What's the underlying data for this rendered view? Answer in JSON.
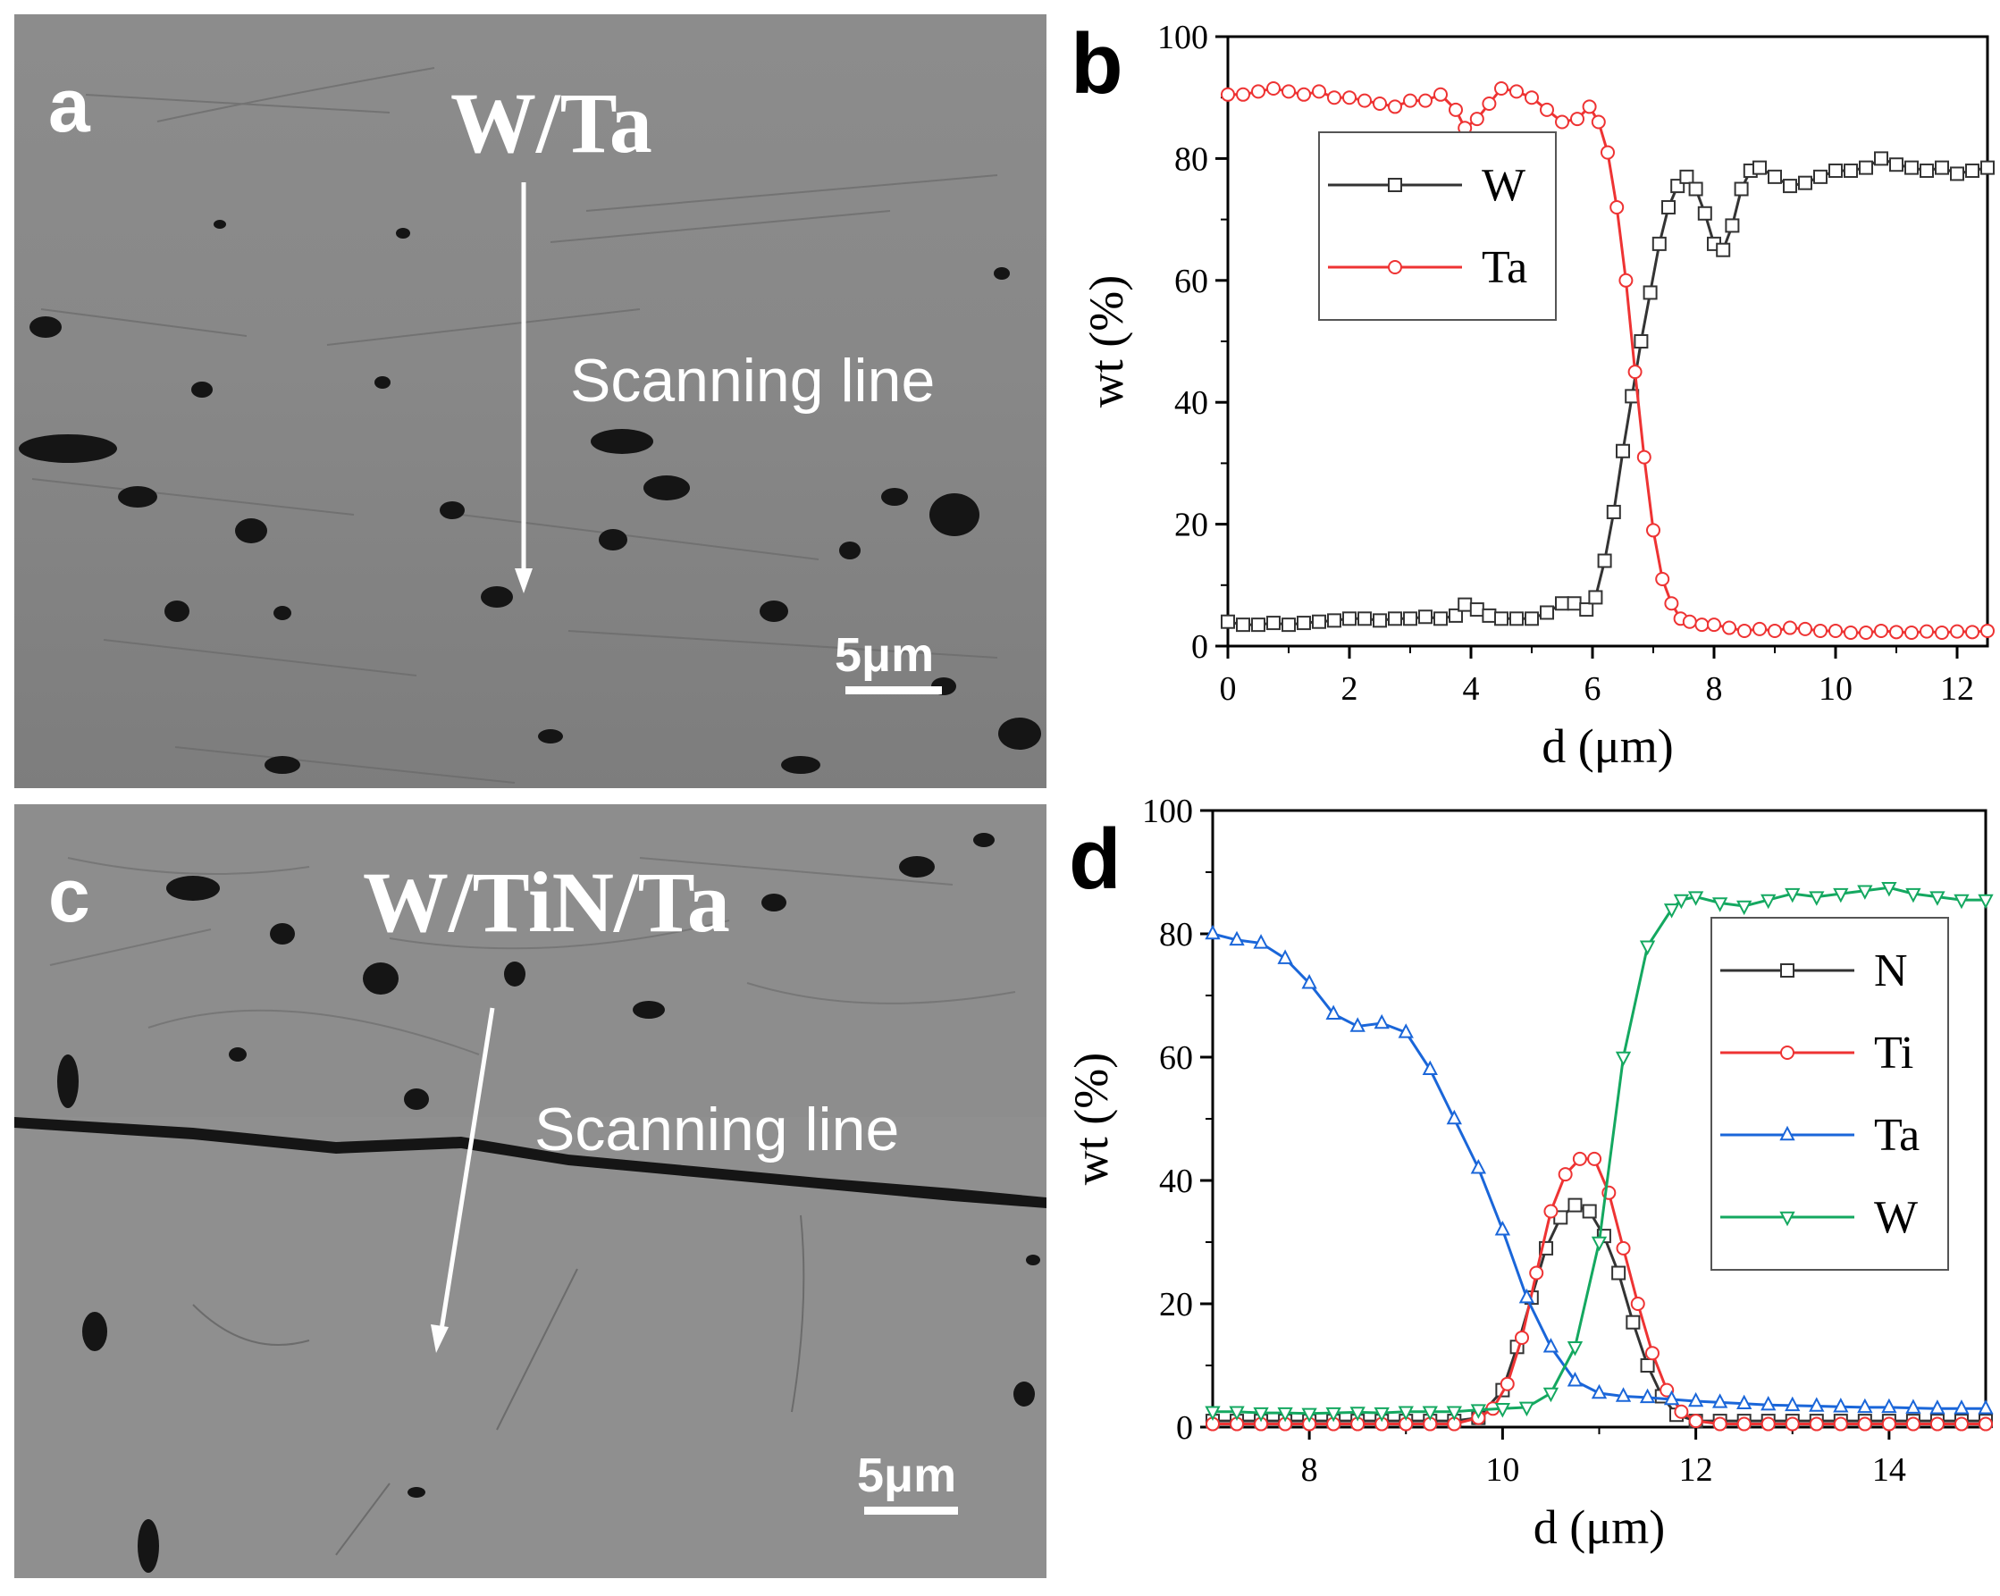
{
  "panels": {
    "a": {
      "letter": "a",
      "sample": "W/Ta",
      "scan_label": "Scanning line",
      "scalebar": "5μm"
    },
    "c": {
      "letter": "c",
      "sample": "W/TiN/Ta",
      "scan_label": "Scanning line",
      "scalebar": "5μm"
    }
  },
  "colors": {
    "black": "#333333",
    "red": "#ee3333",
    "blue": "#1a66d9",
    "green": "#14a860"
  },
  "chart_data": [
    {
      "id": "b",
      "letter": "b",
      "type": "line",
      "xlabel": "d (μm)",
      "ylabel": "wt (%)",
      "xlim": [
        0,
        12.5
      ],
      "ylim": [
        0,
        100
      ],
      "xticks": [
        0,
        2,
        4,
        6,
        8,
        10,
        12
      ],
      "yticks": [
        0,
        20,
        40,
        60,
        80,
        100
      ],
      "legend": "top-left",
      "series": [
        {
          "name": "W",
          "color": "#333333",
          "marker": "square",
          "x": [
            0,
            0.25,
            0.5,
            0.75,
            1,
            1.25,
            1.5,
            1.75,
            2,
            2.25,
            2.5,
            2.75,
            3,
            3.25,
            3.5,
            3.75,
            3.9,
            4.1,
            4.3,
            4.5,
            4.75,
            5,
            5.25,
            5.5,
            5.7,
            5.9,
            6.05,
            6.2,
            6.35,
            6.5,
            6.65,
            6.8,
            6.95,
            7.1,
            7.25,
            7.4,
            7.55,
            7.7,
            7.85,
            8.0,
            8.15,
            8.3,
            8.45,
            8.6,
            8.75,
            9.0,
            9.25,
            9.5,
            9.75,
            10,
            10.25,
            10.5,
            10.75,
            11,
            11.25,
            11.5,
            11.75,
            12,
            12.25,
            12.5
          ],
          "y": [
            4,
            3.5,
            3.5,
            3.8,
            3.5,
            3.8,
            4,
            4.2,
            4.5,
            4.5,
            4.2,
            4.5,
            4.5,
            4.8,
            4.5,
            5,
            6.8,
            6,
            5,
            4.5,
            4.5,
            4.5,
            5.5,
            7,
            7,
            6,
            8,
            14,
            22,
            32,
            41,
            50,
            58,
            66,
            72,
            75.5,
            77,
            75,
            71,
            66,
            65,
            69,
            75,
            78,
            78.5,
            77,
            75.5,
            76,
            77,
            78,
            78,
            78.5,
            80,
            79,
            78.5,
            78,
            78.5,
            77.5,
            78,
            78.5
          ]
        },
        {
          "name": "Ta",
          "color": "#ee3333",
          "marker": "circle",
          "x": [
            0,
            0.25,
            0.5,
            0.75,
            1,
            1.25,
            1.5,
            1.75,
            2,
            2.25,
            2.5,
            2.75,
            3,
            3.25,
            3.5,
            3.75,
            3.9,
            4.1,
            4.3,
            4.5,
            4.75,
            5,
            5.25,
            5.5,
            5.75,
            5.95,
            6.1,
            6.25,
            6.4,
            6.55,
            6.7,
            6.85,
            7.0,
            7.15,
            7.3,
            7.45,
            7.6,
            7.8,
            8.0,
            8.25,
            8.5,
            8.75,
            9.0,
            9.25,
            9.5,
            9.75,
            10,
            10.25,
            10.5,
            10.75,
            11,
            11.25,
            11.5,
            11.75,
            12,
            12.25,
            12.5
          ],
          "y": [
            90.5,
            90.5,
            91,
            91.5,
            91,
            90.5,
            91,
            90,
            90,
            89.5,
            89,
            88.5,
            89.5,
            89.5,
            90.5,
            88,
            85,
            86.5,
            89,
            91.5,
            91,
            90,
            88,
            86,
            86.5,
            88.5,
            86,
            81,
            72,
            60,
            45,
            31,
            19,
            11,
            7,
            4.5,
            4,
            3.5,
            3.5,
            3,
            2.5,
            2.8,
            2.5,
            3,
            2.8,
            2.5,
            2.5,
            2.2,
            2.2,
            2.5,
            2.3,
            2.2,
            2.4,
            2.2,
            2.4,
            2.3,
            2.5
          ]
        }
      ]
    },
    {
      "id": "d",
      "letter": "d",
      "type": "line",
      "xlabel": "d (μm)",
      "ylabel": "wt (%)",
      "xlim": [
        7,
        15
      ],
      "ylim": [
        0,
        100
      ],
      "xticks": [
        8,
        10,
        12,
        14
      ],
      "yticks": [
        0,
        20,
        40,
        60,
        80,
        100
      ],
      "legend": "right",
      "series": [
        {
          "name": "N",
          "color": "#333333",
          "marker": "square",
          "x": [
            7,
            7.25,
            7.5,
            7.75,
            8,
            8.25,
            8.5,
            8.75,
            9,
            9.25,
            9.5,
            9.75,
            10.0,
            10.15,
            10.3,
            10.45,
            10.6,
            10.75,
            10.9,
            11.05,
            11.2,
            11.35,
            11.5,
            11.65,
            11.8,
            12.0,
            12.25,
            12.5,
            12.75,
            13,
            13.25,
            13.5,
            13.75,
            14,
            14.25,
            14.5,
            14.75,
            15
          ],
          "y": [
            1,
            1,
            1,
            1,
            1,
            1,
            1,
            1,
            1,
            1,
            1,
            1.5,
            6,
            13,
            21,
            29,
            34,
            36,
            35,
            31,
            25,
            17,
            10,
            5,
            2,
            1,
            1,
            1,
            1,
            1,
            1,
            1,
            1,
            1,
            1,
            1,
            1,
            1
          ]
        },
        {
          "name": "Ti",
          "color": "#ee3333",
          "marker": "circle",
          "x": [
            7,
            7.25,
            7.5,
            7.75,
            8,
            8.25,
            8.5,
            8.75,
            9,
            9.25,
            9.5,
            9.75,
            9.9,
            10.05,
            10.2,
            10.35,
            10.5,
            10.65,
            10.8,
            10.95,
            11.1,
            11.25,
            11.4,
            11.55,
            11.7,
            11.85,
            12.0,
            12.25,
            12.5,
            12.75,
            13,
            13.25,
            13.5,
            13.75,
            14,
            14.25,
            14.5,
            14.75,
            15
          ],
          "y": [
            0.5,
            0.5,
            0.5,
            0.5,
            0.5,
            0.5,
            0.5,
            0.5,
            0.5,
            0.5,
            0.5,
            1.5,
            3,
            7,
            14.5,
            25,
            35,
            41,
            43.5,
            43.5,
            38,
            29,
            20,
            12,
            6,
            2.5,
            1,
            0.5,
            0.5,
            0.5,
            0.5,
            0.5,
            0.5,
            0.5,
            0.5,
            0.5,
            0.5,
            0.5,
            0.5
          ]
        },
        {
          "name": "Ta",
          "color": "#1a66d9",
          "marker": "triangle-up",
          "x": [
            7,
            7.25,
            7.5,
            7.75,
            8,
            8.25,
            8.5,
            8.75,
            9,
            9.25,
            9.5,
            9.75,
            10,
            10.25,
            10.5,
            10.75,
            11,
            11.25,
            11.5,
            11.75,
            12,
            12.25,
            12.5,
            12.75,
            13,
            13.25,
            13.5,
            13.75,
            14,
            14.25,
            14.5,
            14.75,
            15
          ],
          "y": [
            80,
            79,
            78.5,
            76,
            72,
            67,
            65,
            65.5,
            64,
            58,
            50,
            42,
            32,
            21,
            13,
            7.5,
            5.5,
            5,
            4.8,
            4.5,
            4.2,
            4,
            3.8,
            3.6,
            3.5,
            3.4,
            3.3,
            3.2,
            3.2,
            3.1,
            3,
            3,
            3
          ]
        },
        {
          "name": "W",
          "color": "#14a860",
          "marker": "triangle-down",
          "x": [
            7,
            7.25,
            7.5,
            7.75,
            8,
            8.25,
            8.5,
            8.75,
            9,
            9.25,
            9.5,
            9.75,
            10,
            10.25,
            10.5,
            10.75,
            11,
            11.25,
            11.5,
            11.75,
            11.85,
            12,
            12.25,
            12.5,
            12.75,
            13,
            13.25,
            13.5,
            13.75,
            14,
            14.25,
            14.5,
            14.75,
            15
          ],
          "y": [
            2.5,
            2.5,
            2.3,
            2.3,
            2.2,
            2.3,
            2.4,
            2.3,
            2.5,
            2.5,
            2.5,
            2.8,
            3,
            3.2,
            5.5,
            13,
            30,
            60,
            78,
            84,
            85.5,
            86,
            85,
            84.5,
            85.5,
            86.5,
            86,
            86.5,
            87,
            87.5,
            86.5,
            86,
            85.5,
            85.5
          ]
        }
      ]
    }
  ]
}
